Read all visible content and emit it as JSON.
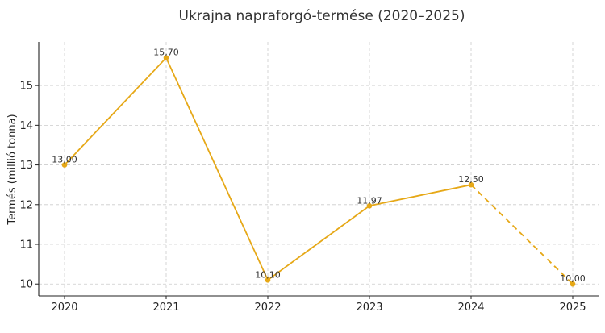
{
  "chart_data": {
    "type": "line",
    "title": "Ukrajna napraforgó-termése (2020–2025)",
    "xlabel": "",
    "ylabel": "Termés (millió tonna)",
    "categories": [
      "2020",
      "2021",
      "2022",
      "2023",
      "2024",
      "2025"
    ],
    "series": [
      {
        "values": [
          13.0,
          15.7,
          10.1,
          11.97,
          12.5,
          10.0
        ],
        "labels": [
          "13,00",
          "15,70",
          "10,10",
          "11,97",
          "12,50",
          "10,00"
        ],
        "color": "#E6A817",
        "dashed_last_segment": true
      }
    ],
    "yticks": [
      10,
      11,
      12,
      13,
      14,
      15
    ],
    "ylim": [
      9.7,
      16.1
    ],
    "grid": true,
    "legend": "none"
  }
}
